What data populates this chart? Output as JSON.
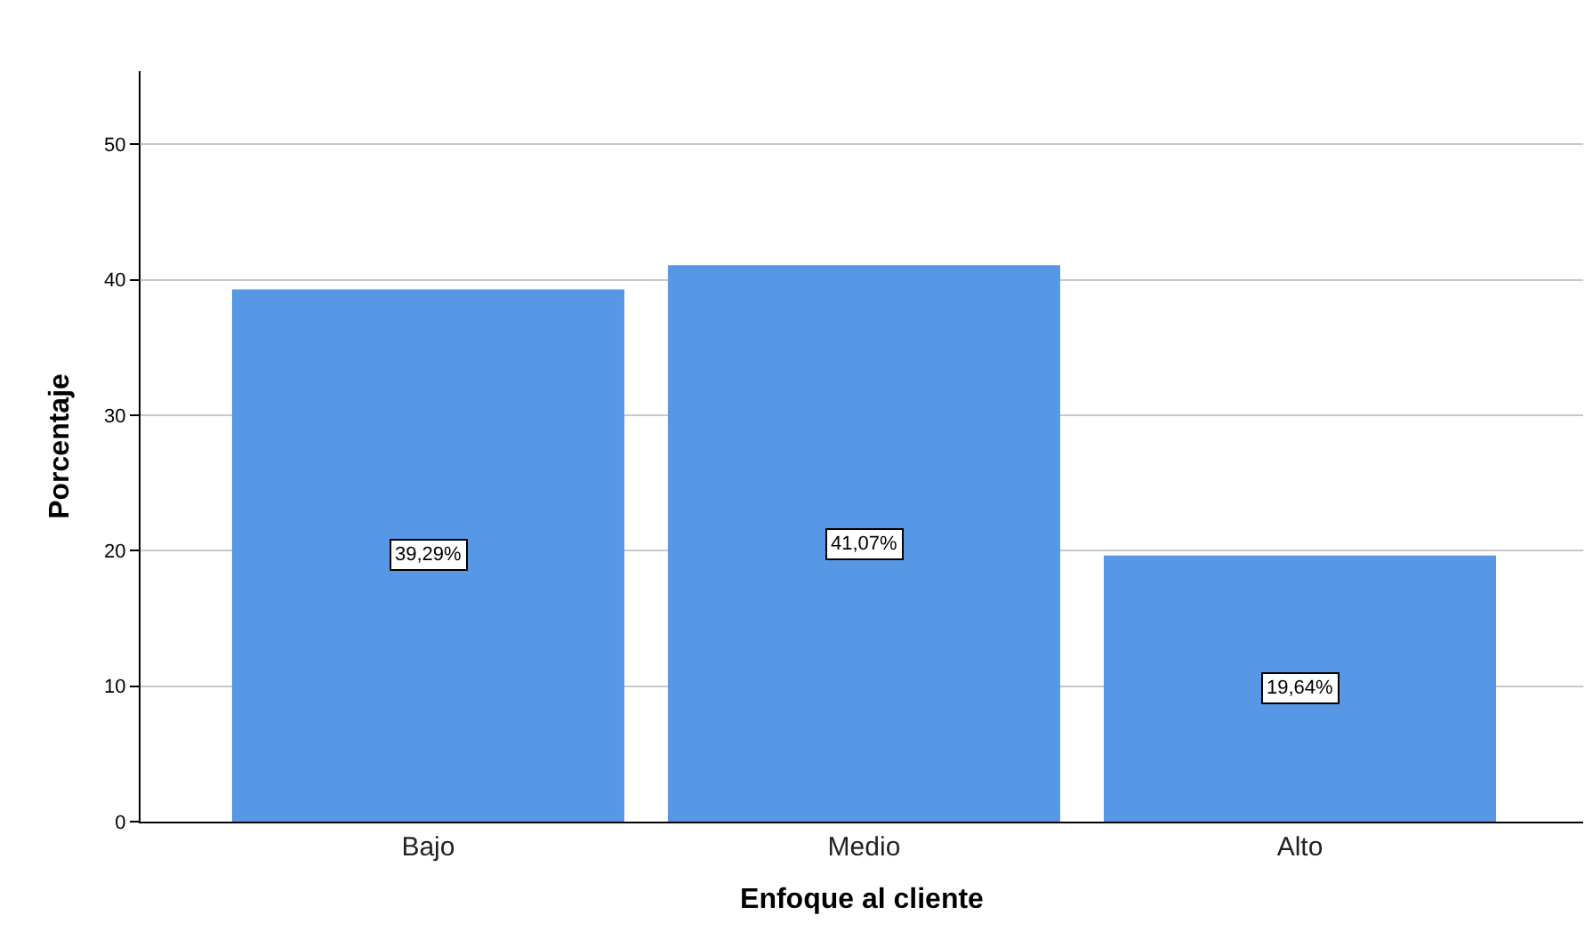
{
  "chart_data": {
    "type": "bar",
    "xlabel": "Enfoque al cliente",
    "ylabel": "Porcentaje",
    "categories": [
      "Bajo",
      "Medio",
      "Alto"
    ],
    "values": [
      39.29,
      41.07,
      19.64
    ],
    "value_labels": [
      "39,29%",
      "41,07%",
      "19,64%"
    ],
    "color": "#5697e6",
    "ylim": [
      0,
      55.4
    ],
    "yticks": [
      0,
      10,
      20,
      30,
      40,
      50
    ],
    "grid": "y",
    "legend": false
  }
}
